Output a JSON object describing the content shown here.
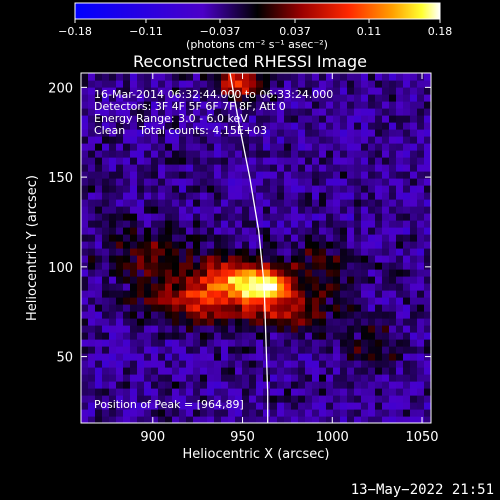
{
  "chart_data": {
    "type": "heatmap",
    "title": "Reconstructed RHESSI Image",
    "xlabel": "Heliocentric X (arcsec)",
    "ylabel": "Heliocentric Y (arcsec)",
    "xlim": [
      860,
      1055
    ],
    "ylim": [
      13,
      208
    ],
    "x_ticks": [
      900,
      950,
      1000,
      1050
    ],
    "y_ticks": [
      50,
      100,
      150,
      200
    ],
    "x_tick_labels": [
      "900",
      "950",
      "1000",
      "1050"
    ],
    "y_tick_labels": [
      "50",
      "100",
      "150",
      "200"
    ],
    "colorbar": {
      "ticks": [
        -0.18,
        -0.11,
        -0.037,
        0.037,
        0.11,
        0.18
      ],
      "tick_labels": [
        "−0.18",
        "−0.11",
        "−0.037",
        "0.037",
        "0.11",
        "0.18"
      ],
      "units": "(photons cm⁻² s⁻¹ asec⁻²)",
      "range": [
        -0.18,
        0.18
      ]
    },
    "annotations": [
      "16-Mar-2014 06:32:44.000 to 06:33:24.000",
      "Detectors: 3F 4F 5F 6F 7F 8F, Att 0",
      "Energy Range: 3.0 - 6.0 keV",
      "Clean    Total counts: 4.15E+03"
    ],
    "peak_label": "Position of Peak = [964,89]",
    "peak": {
      "x": 964,
      "y": 89
    },
    "sources": [
      {
        "x": 963,
        "y": 90,
        "amp": 0.17,
        "sx": 9,
        "sy": 6
      },
      {
        "x": 945,
        "y": 94,
        "amp": 0.13,
        "sx": 12,
        "sy": 8
      },
      {
        "x": 925,
        "y": 82,
        "amp": 0.1,
        "sx": 22,
        "sy": 9
      },
      {
        "x": 975,
        "y": 75,
        "amp": 0.08,
        "sx": 18,
        "sy": 8
      },
      {
        "x": 948,
        "y": 203,
        "amp": 0.12,
        "sx": 9,
        "sy": 6
      },
      {
        "x": 900,
        "y": 108,
        "amp": 0.06,
        "sx": 18,
        "sy": 10
      },
      {
        "x": 990,
        "y": 100,
        "amp": 0.05,
        "sx": 15,
        "sy": 10
      },
      {
        "x": 1020,
        "y": 55,
        "amp": 0.04,
        "sx": 12,
        "sy": 10
      }
    ],
    "limb_curve": [
      [
        943,
        208
      ],
      [
        948,
        180
      ],
      [
        954,
        150
      ],
      [
        959,
        120
      ],
      [
        962,
        90
      ],
      [
        963,
        60
      ],
      [
        964,
        30
      ],
      [
        964,
        13
      ]
    ],
    "grid": false,
    "colormap": "blue-black-red-yellow-white"
  },
  "footer": {
    "date": "13−May−2022 21:51"
  }
}
